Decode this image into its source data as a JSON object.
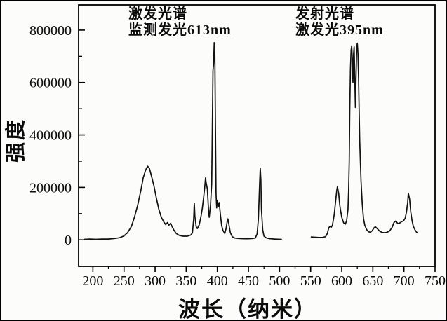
{
  "figure": {
    "background": "#fcfcfa",
    "frame_color": "#000000",
    "line_color": "#111111",
    "text_color": "#0b0b0b"
  },
  "chart_data": {
    "type": "line",
    "title": "",
    "xlabel": "波长（纳米）",
    "ylabel": "强度",
    "xlim": [
      177,
      750
    ],
    "ylim": [
      -101000,
      896000
    ],
    "x_major_ticks": [
      200,
      250,
      300,
      350,
      400,
      450,
      500,
      550,
      600,
      650,
      700,
      750
    ],
    "x_minor_step": 25,
    "y_major_ticks": [
      0,
      200000,
      400000,
      600000,
      800000
    ],
    "y_minor_ticks": [
      100000,
      300000,
      500000,
      700000
    ],
    "grid": false,
    "legend": "none",
    "annotations": [
      {
        "id": "excitation-note",
        "lines": [
          "激发光谱",
          "监测发光613nm"
        ]
      },
      {
        "id": "emission-note",
        "lines": [
          "发射光谱",
          "激发光395nm"
        ]
      }
    ],
    "series": [
      {
        "name": "excitation-spectrum",
        "points": [
          [
            186,
            2000
          ],
          [
            195,
            3000
          ],
          [
            205,
            2000
          ],
          [
            215,
            3000
          ],
          [
            225,
            3000
          ],
          [
            235,
            5000
          ],
          [
            243,
            8000
          ],
          [
            250,
            15000
          ],
          [
            256,
            28000
          ],
          [
            262,
            52000
          ],
          [
            267,
            88000
          ],
          [
            272,
            132000
          ],
          [
            277,
            188000
          ],
          [
            281,
            238000
          ],
          [
            285,
            267000
          ],
          [
            288,
            281000
          ],
          [
            291,
            271000
          ],
          [
            294,
            245000
          ],
          [
            298,
            207000
          ],
          [
            302,
            160000
          ],
          [
            306,
            116000
          ],
          [
            310,
            86000
          ],
          [
            314,
            68000
          ],
          [
            317,
            58000
          ],
          [
            320,
            66000
          ],
          [
            322,
            56000
          ],
          [
            325,
            63000
          ],
          [
            327,
            52000
          ],
          [
            330,
            38000
          ],
          [
            334,
            24000
          ],
          [
            339,
            17000
          ],
          [
            345,
            14000
          ],
          [
            352,
            14000
          ],
          [
            357,
            18000
          ],
          [
            360,
            26000
          ],
          [
            362,
            78000
          ],
          [
            363,
            140000
          ],
          [
            364,
            88000
          ],
          [
            366,
            50000
          ],
          [
            368,
            43000
          ],
          [
            371,
            58000
          ],
          [
            374,
            93000
          ],
          [
            376,
            122000
          ],
          [
            378,
            162000
          ],
          [
            380,
            208000
          ],
          [
            381,
            236000
          ],
          [
            382,
            219000
          ],
          [
            384,
            194000
          ],
          [
            386,
            108000
          ],
          [
            387,
            86000
          ],
          [
            389,
            132000
          ],
          [
            391,
            215000
          ],
          [
            392,
            430000
          ],
          [
            393,
            645000
          ],
          [
            394,
            672000
          ],
          [
            395,
            752000
          ],
          [
            396,
            698000
          ],
          [
            397,
            440000
          ],
          [
            398,
            175000
          ],
          [
            399,
            122000
          ],
          [
            400,
            150000
          ],
          [
            402,
            128000
          ],
          [
            403,
            142000
          ],
          [
            405,
            96000
          ],
          [
            407,
            54000
          ],
          [
            409,
            36000
          ],
          [
            412,
            24000
          ],
          [
            414,
            42000
          ],
          [
            416,
            72000
          ],
          [
            417,
            80000
          ],
          [
            419,
            54000
          ],
          [
            421,
            27000
          ],
          [
            424,
            12000
          ],
          [
            428,
            7000
          ],
          [
            434,
            5000
          ],
          [
            442,
            4000
          ],
          [
            450,
            4000
          ],
          [
            457,
            5000
          ],
          [
            461,
            7000
          ],
          [
            464,
            22000
          ],
          [
            466,
            78000
          ],
          [
            468,
            215000
          ],
          [
            469,
            273000
          ],
          [
            470,
            228000
          ],
          [
            471,
            115000
          ],
          [
            473,
            38000
          ],
          [
            475,
            14000
          ],
          [
            479,
            7000
          ],
          [
            485,
            4000
          ],
          [
            492,
            3000
          ],
          [
            500,
            2000
          ],
          [
            503,
            2000
          ]
        ]
      },
      {
        "name": "emission-spectrum",
        "points": [
          [
            551,
            11000
          ],
          [
            557,
            10000
          ],
          [
            563,
            9000
          ],
          [
            569,
            9000
          ],
          [
            574,
            12000
          ],
          [
            577,
            25000
          ],
          [
            579,
            45000
          ],
          [
            581,
            52000
          ],
          [
            583,
            47000
          ],
          [
            585,
            55000
          ],
          [
            588,
            98000
          ],
          [
            590,
            145000
          ],
          [
            592,
            188000
          ],
          [
            593,
            202000
          ],
          [
            595,
            178000
          ],
          [
            597,
            128000
          ],
          [
            600,
            86000
          ],
          [
            603,
            65000
          ],
          [
            606,
            60000
          ],
          [
            608,
            75000
          ],
          [
            610,
            115000
          ],
          [
            611,
            185000
          ],
          [
            612,
            300000
          ],
          [
            613,
            500000
          ],
          [
            614,
            650000
          ],
          [
            615,
            722000
          ],
          [
            616,
            740000
          ],
          [
            617,
            688000
          ],
          [
            618,
            600000
          ],
          [
            619,
            710000
          ],
          [
            620,
            736000
          ],
          [
            621,
            615000
          ],
          [
            622,
            505000
          ],
          [
            623,
            620000
          ],
          [
            624,
            730000
          ],
          [
            625,
            750000
          ],
          [
            626,
            712000
          ],
          [
            627,
            618000
          ],
          [
            628,
            495000
          ],
          [
            629,
            372000
          ],
          [
            631,
            225000
          ],
          [
            633,
            135000
          ],
          [
            635,
            82000
          ],
          [
            637,
            56000
          ],
          [
            640,
            39000
          ],
          [
            643,
            31000
          ],
          [
            646,
            29000
          ],
          [
            649,
            35000
          ],
          [
            652,
            46000
          ],
          [
            654,
            50000
          ],
          [
            657,
            43000
          ],
          [
            661,
            33000
          ],
          [
            665,
            28000
          ],
          [
            669,
            27000
          ],
          [
            673,
            29000
          ],
          [
            677,
            34000
          ],
          [
            681,
            48000
          ],
          [
            684,
            66000
          ],
          [
            687,
            72000
          ],
          [
            690,
            62000
          ],
          [
            693,
            64000
          ],
          [
            696,
            69000
          ],
          [
            699,
            72000
          ],
          [
            702,
            82000
          ],
          [
            704,
            105000
          ],
          [
            706,
            142000
          ],
          [
            707,
            178000
          ],
          [
            709,
            156000
          ],
          [
            711,
            106000
          ],
          [
            713,
            73000
          ],
          [
            715,
            52000
          ],
          [
            718,
            37000
          ],
          [
            721,
            27000
          ]
        ]
      }
    ]
  }
}
